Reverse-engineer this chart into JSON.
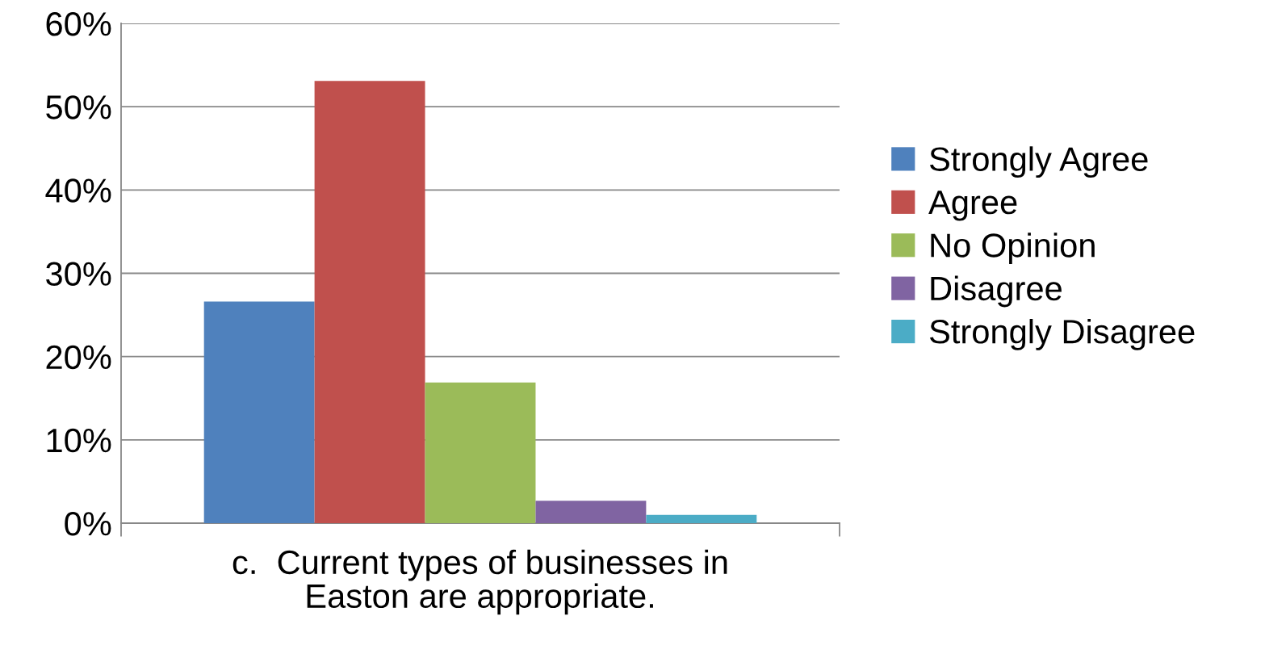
{
  "chart_data": {
    "type": "bar",
    "stacked": true,
    "xlabel": "c.  Current types of businesses in Easton are appropriate.",
    "categories": [
      null,
      null,
      null,
      null,
      null
    ],
    "series": [
      {
        "name": "Strongly Agree",
        "color": "#4f81bd",
        "values": [
          26.6,
          null,
          null,
          null,
          null
        ]
      },
      {
        "name": "Agree",
        "color": "#c0504d",
        "values": [
          null,
          53.1,
          null,
          null,
          null
        ]
      },
      {
        "name": "No Opinion",
        "color": "#9bbb59",
        "values": [
          null,
          null,
          16.9,
          null,
          null
        ]
      },
      {
        "name": "Disagree",
        "color": "#8064a2",
        "values": [
          null,
          null,
          null,
          2.7,
          null
        ]
      },
      {
        "name": "Strongly Disagree",
        "color": "#4bacc6",
        "values": [
          null,
          null,
          null,
          null,
          1.0
        ]
      }
    ],
    "ylim": [
      0,
      60
    ],
    "yticks": [
      {
        "value": 0,
        "label": "0%"
      },
      {
        "value": 10,
        "label": "10%"
      },
      {
        "value": 20,
        "label": "20%"
      },
      {
        "value": 30,
        "label": "30%"
      },
      {
        "value": 40,
        "label": "40%"
      },
      {
        "value": 50,
        "label": "50%"
      },
      {
        "value": 60,
        "label": "60%"
      }
    ],
    "grid": "y",
    "legend": "right"
  }
}
